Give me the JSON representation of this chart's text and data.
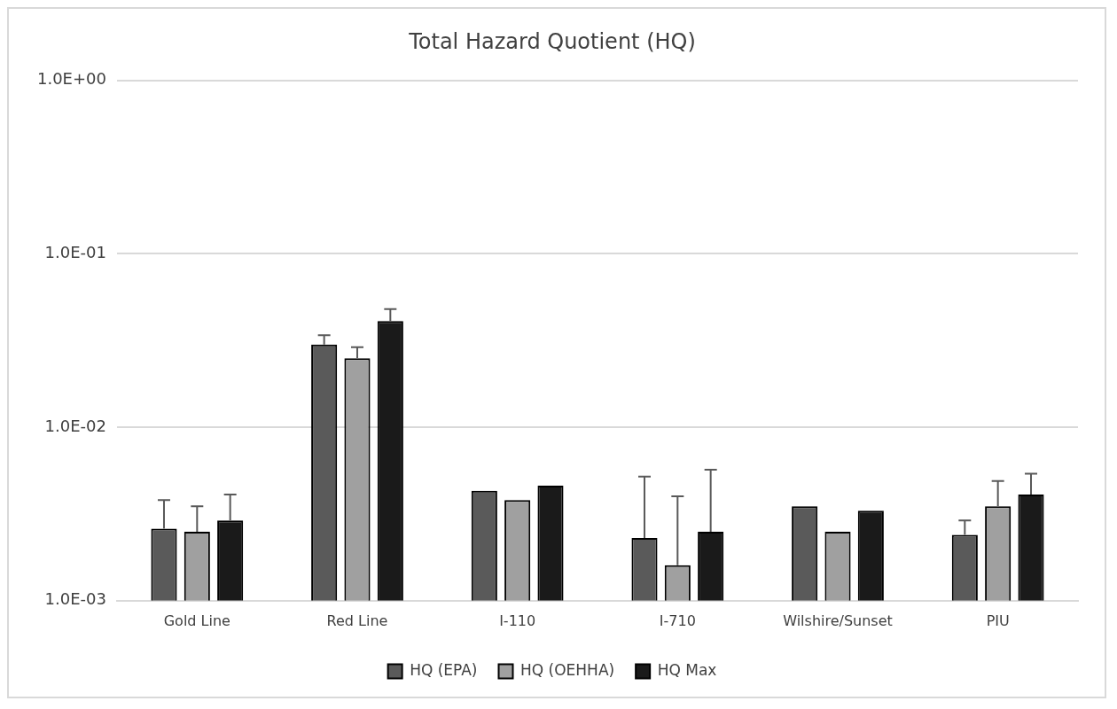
{
  "chart_data": {
    "type": "bar",
    "title": "Total Hazard Quotient (HQ)",
    "categories": [
      "Gold Line",
      "Red Line",
      "I-110",
      "I-710",
      "Wilshire/Sunset",
      "PIU"
    ],
    "series": [
      {
        "name": "HQ (EPA)",
        "color": "#5a5a5a",
        "values": [
          0.0026,
          0.03,
          0.0043,
          0.0023,
          0.0035,
          0.0024
        ],
        "errors": [
          [
            0.0026,
            0.0038
          ],
          [
            0.03,
            0.034
          ],
          null,
          [
            0.0023,
            0.0052
          ],
          null,
          [
            0.0024,
            0.0029
          ]
        ]
      },
      {
        "name": "HQ (OEHHA)",
        "color": "#a0a0a0",
        "values": [
          0.0025,
          0.025,
          0.0038,
          0.0016,
          0.0025,
          0.0035
        ],
        "errors": [
          [
            0.0025,
            0.0035
          ],
          [
            0.025,
            0.029
          ],
          null,
          [
            0.0016,
            0.004
          ],
          null,
          [
            0.0035,
            0.0049
          ]
        ]
      },
      {
        "name": "HQ Max",
        "color": "#1a1a1a",
        "values": [
          0.0029,
          0.041,
          0.0046,
          0.0025,
          0.0033,
          0.0041
        ],
        "errors": [
          [
            0.0029,
            0.0041
          ],
          [
            0.041,
            0.048
          ],
          null,
          [
            0.0025,
            0.0057
          ],
          null,
          [
            0.0041,
            0.0054
          ]
        ]
      }
    ],
    "log": "y",
    "ylim": [
      0.001,
      1
    ],
    "yticks": [
      {
        "value": 0.001,
        "label": "1.0E-03"
      },
      {
        "value": 0.01,
        "label": "1.0E-02"
      },
      {
        "value": 0.1,
        "label": "1.0E-01"
      },
      {
        "value": 1,
        "label": "1.0E+00"
      }
    ],
    "grid": "y",
    "legend": "bottom"
  }
}
